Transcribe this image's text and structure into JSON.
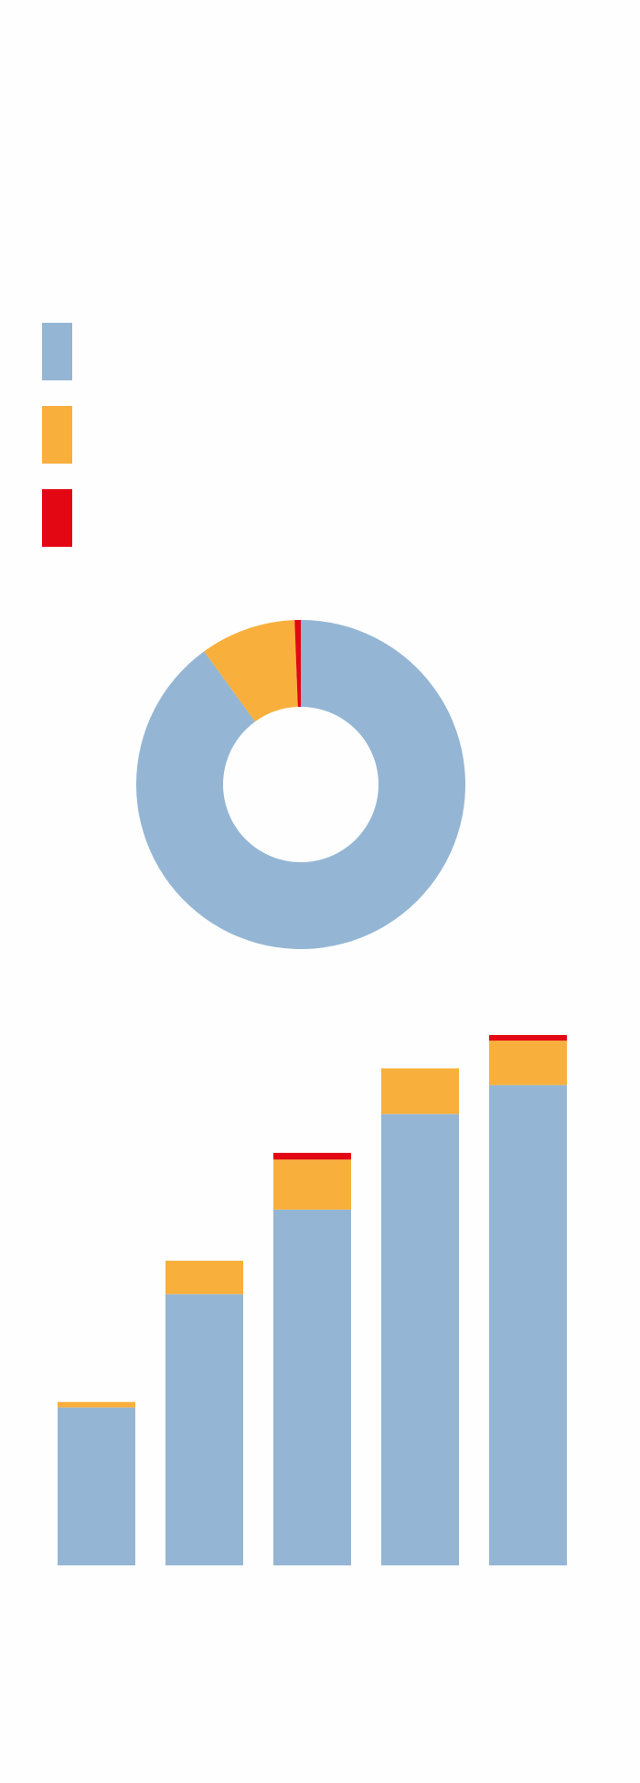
{
  "chart_data": [
    {
      "type": "pie",
      "values": [
        90,
        9.4,
        0.6
      ],
      "colors": [
        "#94b6d4",
        "#f8af3c",
        "#e30613"
      ],
      "donut": true
    },
    {
      "type": "bar",
      "stacked": true,
      "legend": "top-left",
      "categories": [
        null,
        null,
        null,
        null,
        null
      ],
      "series": [
        {
          "color": "#94b6d4",
          "values": [
            142,
            244,
            320,
            406,
            432
          ]
        },
        {
          "color": "#f8af3c",
          "values": [
            5,
            30,
            45,
            41,
            40
          ]
        },
        {
          "color": "#e30613",
          "values": [
            0,
            0,
            6,
            0,
            5
          ]
        }
      ],
      "ylim": [
        0,
        500
      ]
    }
  ]
}
